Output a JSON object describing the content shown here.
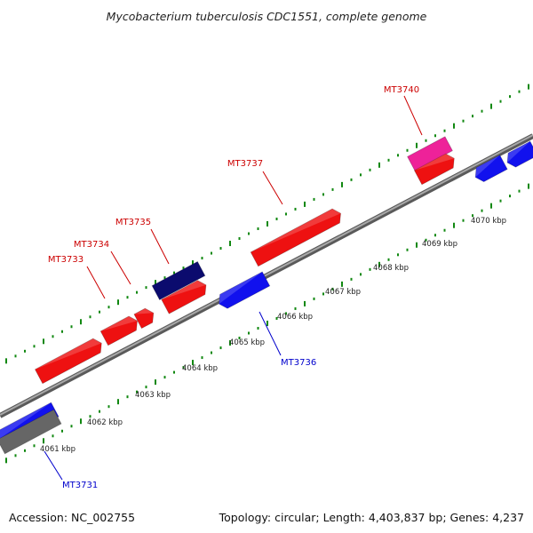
{
  "title": "Mycobacterium tuberculosis CDC1551, complete genome",
  "footer": {
    "accession": "Accession: NC_002755",
    "summary": "Topology: circular; Length: 4,403,837 bp; Genes: 4,237"
  },
  "scale_labels": [
    "4061 kbp",
    "4062 kbp",
    "4063 kbp",
    "4064 kbp",
    "4065 kbp",
    "4066 kbp",
    "4067 kbp",
    "4068 kbp",
    "4069 kbp",
    "4070 kbp"
  ],
  "gene_labels": [
    {
      "name": "MT3731",
      "color": "#0000cc"
    },
    {
      "name": "MT3733",
      "color": "#cc0000"
    },
    {
      "name": "MT3734",
      "color": "#cc0000"
    },
    {
      "name": "MT3735",
      "color": "#cc0000"
    },
    {
      "name": "MT3736",
      "color": "#0000cc"
    },
    {
      "name": "MT3737",
      "color": "#cc0000"
    },
    {
      "name": "MT3740",
      "color": "#cc0000"
    }
  ],
  "colors": {
    "backbone": "#8c8c8c",
    "forward_gene": "#ee1111",
    "reverse_gene": "#1111ee",
    "dark_gene": "#0b0b6e",
    "pink_gene": "#ee2299",
    "grey_gene": "#666666",
    "tick_green": "#118811"
  }
}
